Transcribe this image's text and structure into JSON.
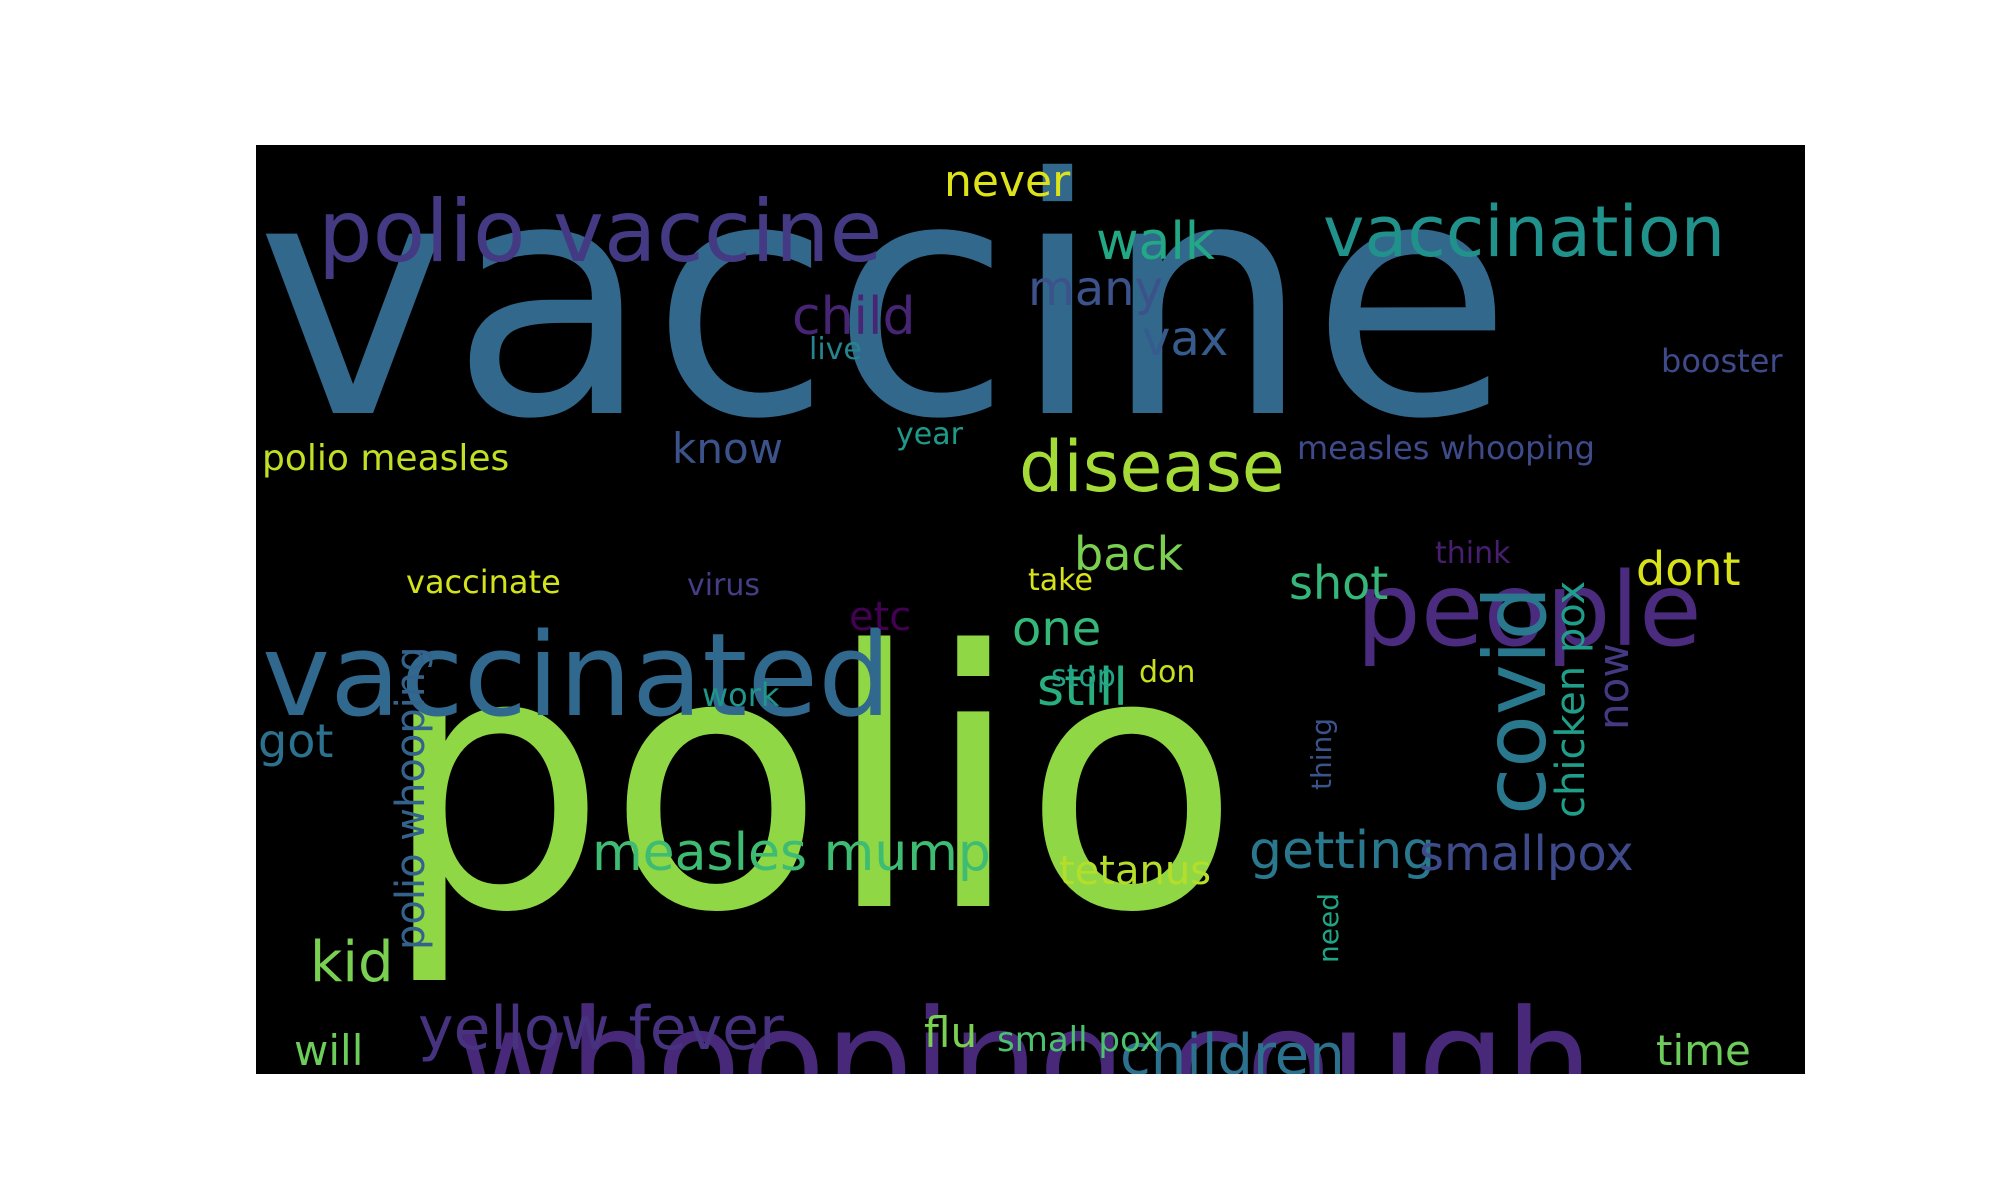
{
  "wordcloud": {
    "background_color": "#000000",
    "words": [
      {
        "text": "vaccine",
        "color": "#33688d",
        "orientation": "horizontal"
      },
      {
        "text": "polio",
        "color": "#8fd744",
        "orientation": "horizontal"
      },
      {
        "text": "whooping cough",
        "color": "#482878",
        "orientation": "horizontal"
      },
      {
        "text": "vaccinated",
        "color": "#31688e",
        "orientation": "horizontal"
      },
      {
        "text": "polio vaccine",
        "color": "#443983",
        "orientation": "horizontal"
      },
      {
        "text": "people",
        "color": "#4a2b7d",
        "orientation": "horizontal"
      },
      {
        "text": "vaccination",
        "color": "#21918c",
        "orientation": "horizontal"
      },
      {
        "text": "disease",
        "color": "#a5db36",
        "orientation": "horizontal"
      },
      {
        "text": "covid",
        "color": "#2a788e",
        "orientation": "vertical"
      },
      {
        "text": "yellow fever",
        "color": "#46327e",
        "orientation": "horizontal"
      },
      {
        "text": "measles mump",
        "color": "#3ebc73",
        "orientation": "horizontal"
      },
      {
        "text": "children",
        "color": "#2c728e",
        "orientation": "horizontal"
      },
      {
        "text": "getting",
        "color": "#2a788e",
        "orientation": "horizontal"
      },
      {
        "text": "smallpox",
        "color": "#3e4a89",
        "orientation": "horizontal"
      },
      {
        "text": "walk",
        "color": "#22a884",
        "orientation": "horizontal"
      },
      {
        "text": "child",
        "color": "#482475",
        "orientation": "horizontal"
      },
      {
        "text": "many",
        "color": "#3b528b",
        "orientation": "horizontal"
      },
      {
        "text": "never",
        "color": "#dde318",
        "orientation": "horizontal"
      },
      {
        "text": "kid",
        "color": "#7ad151",
        "orientation": "horizontal"
      },
      {
        "text": "still",
        "color": "#29af7f",
        "orientation": "horizontal"
      },
      {
        "text": "polio whooping",
        "color": "#33638d",
        "orientation": "vertical"
      },
      {
        "text": "chicken pox",
        "color": "#1f9e89",
        "orientation": "vertical"
      },
      {
        "text": "vax",
        "color": "#365c8d",
        "orientation": "horizontal"
      },
      {
        "text": "know",
        "color": "#3b528b",
        "orientation": "horizontal"
      },
      {
        "text": "back",
        "color": "#7ad151",
        "orientation": "horizontal"
      },
      {
        "text": "shot",
        "color": "#35b779",
        "orientation": "horizontal"
      },
      {
        "text": "one",
        "color": "#35b779",
        "orientation": "horizontal"
      },
      {
        "text": "dont",
        "color": "#d8e219",
        "orientation": "horizontal"
      },
      {
        "text": "now",
        "color": "#443983",
        "orientation": "vertical"
      },
      {
        "text": "got",
        "color": "#2c728e",
        "orientation": "horizontal"
      },
      {
        "text": "tetanus",
        "color": "#b5de2b",
        "orientation": "horizontal"
      },
      {
        "text": "time",
        "color": "#6ccd5a",
        "orientation": "horizontal"
      },
      {
        "text": "etc",
        "color": "#440154",
        "orientation": "horizontal"
      },
      {
        "text": "will",
        "color": "#6ccd5a",
        "orientation": "horizontal"
      },
      {
        "text": "flu",
        "color": "#7ad151",
        "orientation": "horizontal"
      },
      {
        "text": "polio measles",
        "color": "#c2df23",
        "orientation": "horizontal"
      },
      {
        "text": "measles whooping",
        "color": "#3e4a89",
        "orientation": "horizontal"
      },
      {
        "text": "small pox",
        "color": "#4ac16d",
        "orientation": "horizontal"
      },
      {
        "text": "vaccinate",
        "color": "#d2e21b",
        "orientation": "horizontal"
      },
      {
        "text": "booster",
        "color": "#3e4a89",
        "orientation": "horizontal"
      },
      {
        "text": "live",
        "color": "#25848e",
        "orientation": "horizontal"
      },
      {
        "text": "year",
        "color": "#1f9a8a",
        "orientation": "horizontal"
      },
      {
        "text": "virus",
        "color": "#433e85",
        "orientation": "horizontal"
      },
      {
        "text": "think",
        "color": "#481f70",
        "orientation": "horizontal"
      },
      {
        "text": "take",
        "color": "#d8e219",
        "orientation": "horizontal"
      },
      {
        "text": "stop",
        "color": "#20a386",
        "orientation": "horizontal"
      },
      {
        "text": "don",
        "color": "#c8e020",
        "orientation": "horizontal"
      },
      {
        "text": "work",
        "color": "#1f968b",
        "orientation": "horizontal"
      },
      {
        "text": "thing",
        "color": "#3b528b",
        "orientation": "vertical"
      },
      {
        "text": "need",
        "color": "#20a486",
        "orientation": "vertical"
      }
    ]
  }
}
